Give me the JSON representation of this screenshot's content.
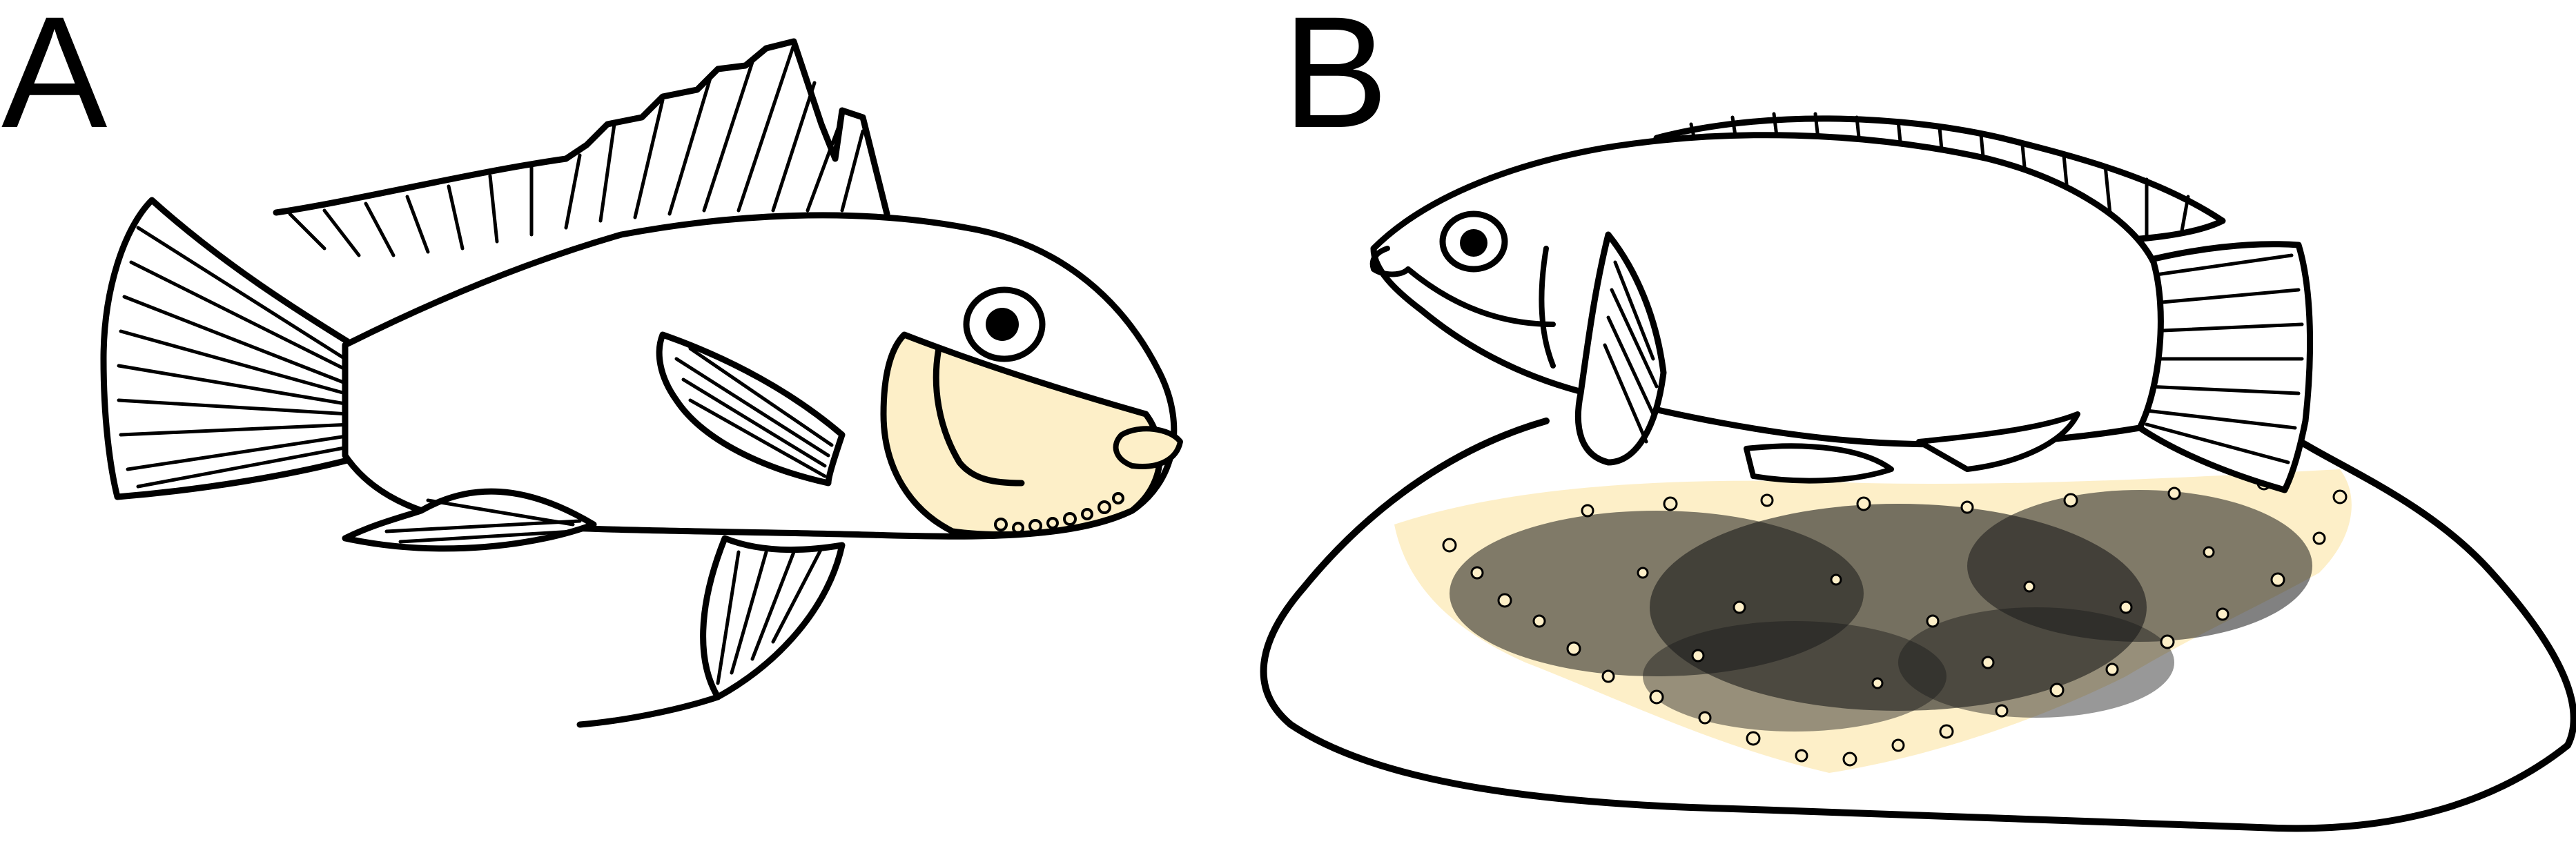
{
  "panels": [
    {
      "label": "A",
      "subject": "mouthbrooding-fish"
    },
    {
      "label": "B",
      "subject": "substrate-spawning-fish"
    }
  ],
  "colors": {
    "ink": "#000000",
    "paper": "#ffffff",
    "highlight": "#fdefc8"
  }
}
